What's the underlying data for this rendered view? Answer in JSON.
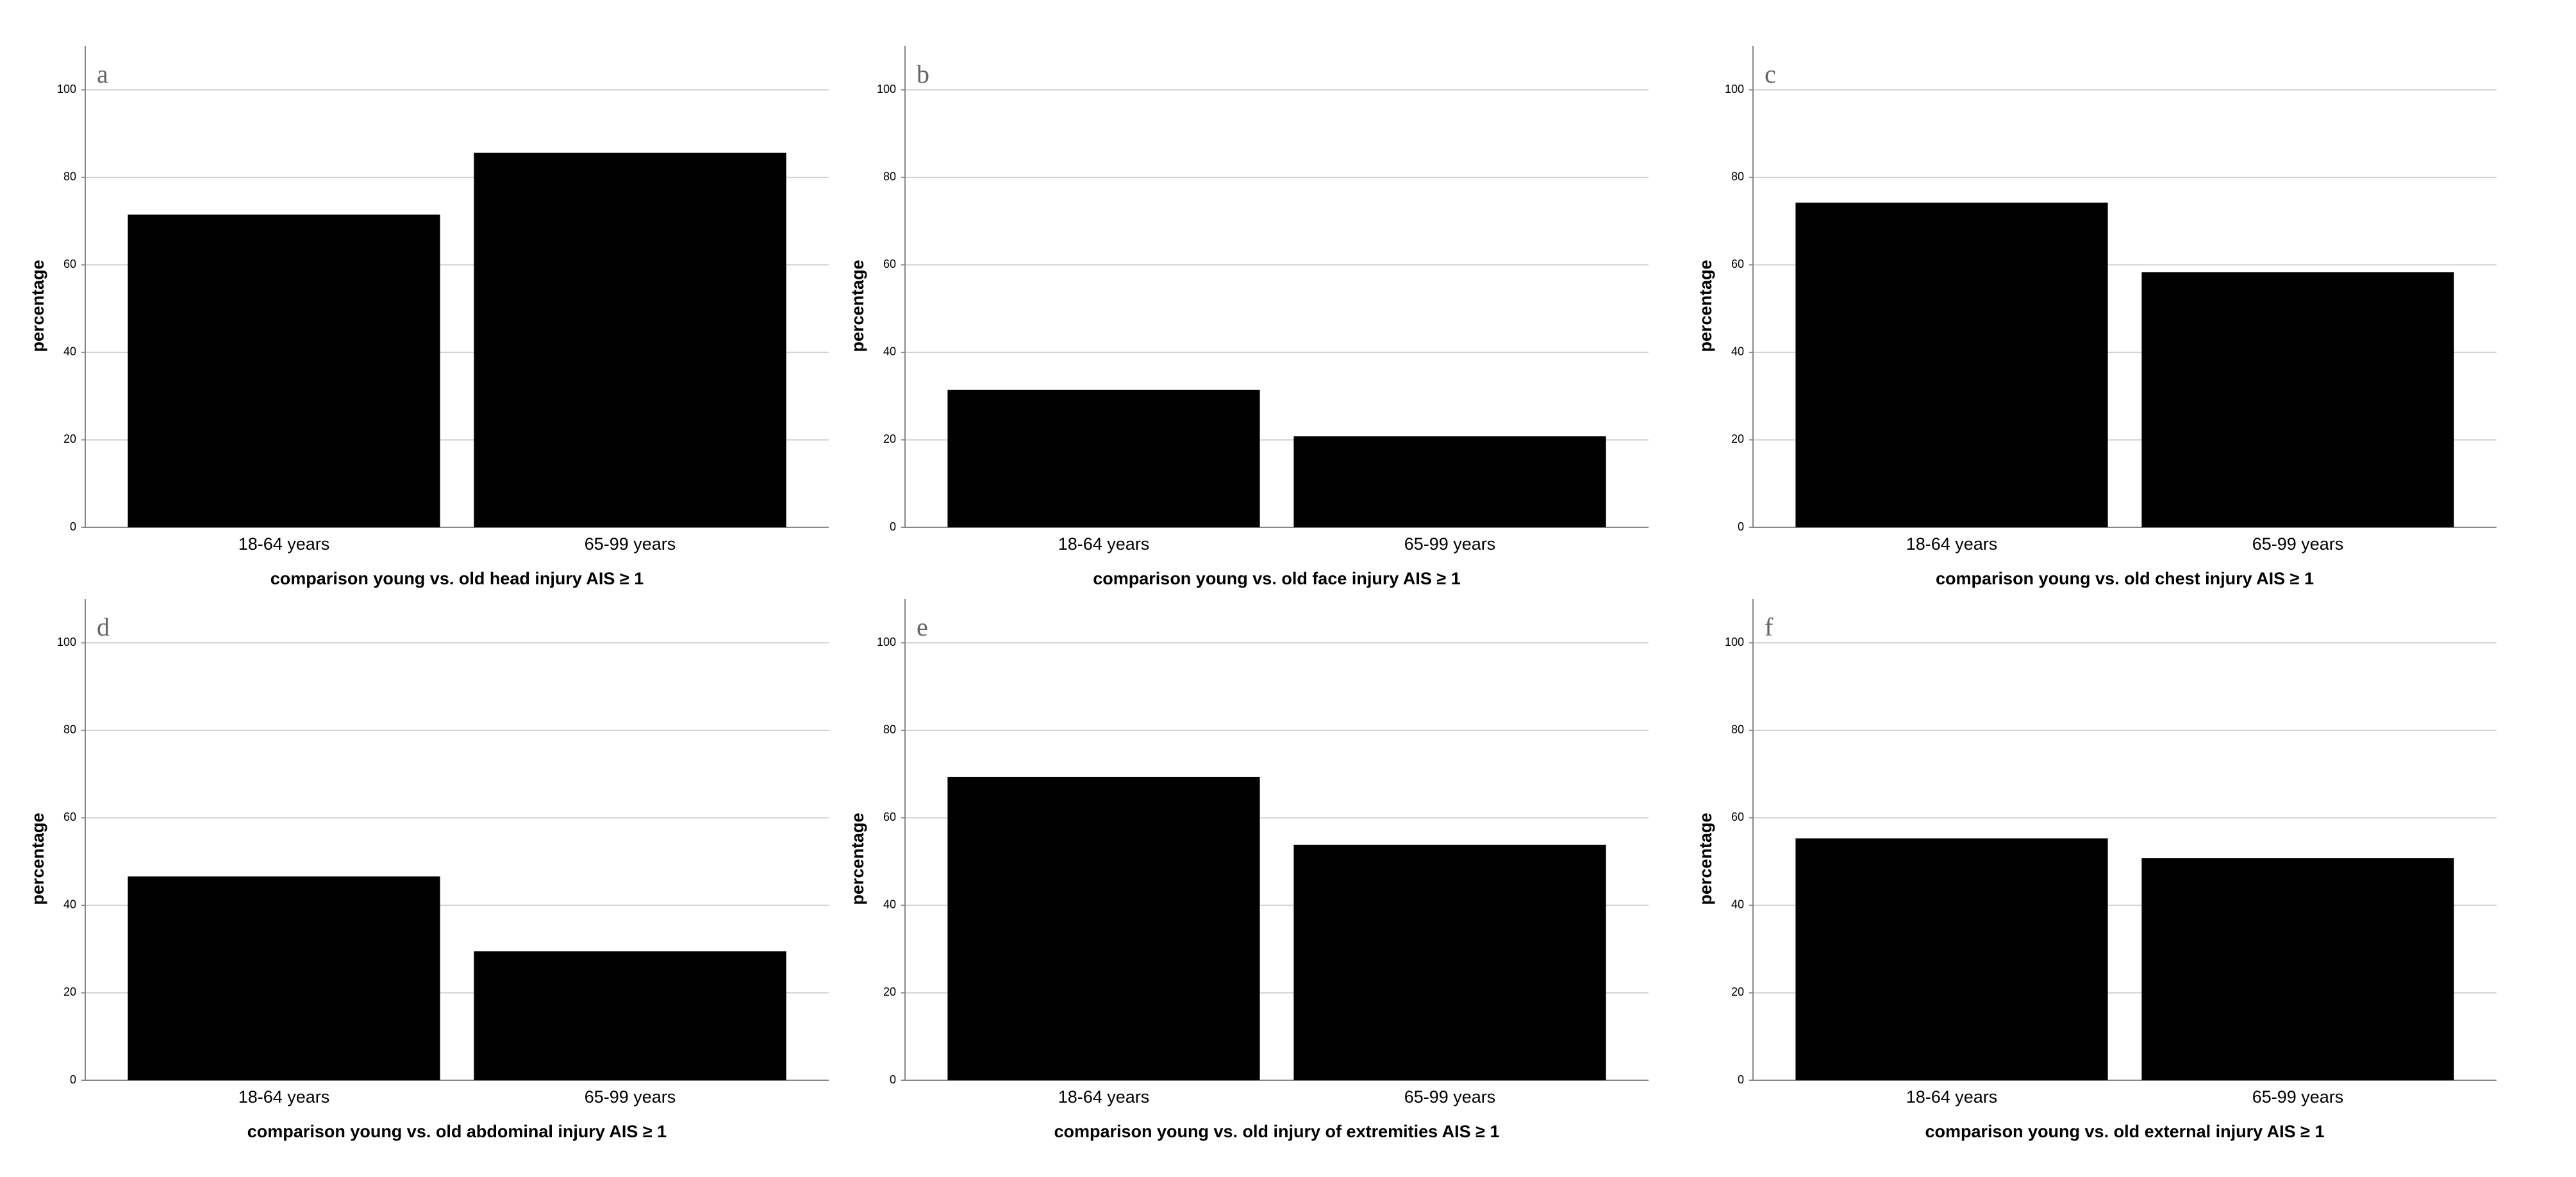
{
  "chart_data": [
    {
      "type": "bar",
      "panel_label": "a",
      "categories": [
        "18-64 years",
        "65-99 years"
      ],
      "values": [
        71.5,
        85.6
      ],
      "xlabel": "comparison young vs. old head injury AIS ≥ 1",
      "ylabel": "percentage",
      "ylim": [
        0,
        110
      ],
      "yticks": [
        0,
        20,
        40,
        60,
        80,
        100
      ],
      "color": "#000000",
      "grid": true
    },
    {
      "type": "bar",
      "panel_label": "b",
      "categories": [
        "18-64 years",
        "65-99 years"
      ],
      "values": [
        31.4,
        20.8
      ],
      "xlabel": "comparison young vs. old face injury AIS ≥ 1",
      "ylabel": "percentage",
      "ylim": [
        0,
        110
      ],
      "yticks": [
        0,
        20,
        40,
        60,
        80,
        100
      ],
      "color": "#000000",
      "grid": true
    },
    {
      "type": "bar",
      "panel_label": "c",
      "categories": [
        "18-64 years",
        "65-99 years"
      ],
      "values": [
        74.2,
        58.3
      ],
      "xlabel": "comparison young vs. old chest injury AIS ≥ 1",
      "ylabel": "percentage",
      "ylim": [
        0,
        110
      ],
      "yticks": [
        0,
        20,
        40,
        60,
        80,
        100
      ],
      "color": "#000000",
      "grid": true
    },
    {
      "type": "bar",
      "panel_label": "d",
      "categories": [
        "18-64 years",
        "65-99 years"
      ],
      "values": [
        46.6,
        29.5
      ],
      "xlabel": "comparison young vs. old abdominal injury AIS ≥ 1",
      "ylabel": "percentage",
      "ylim": [
        0,
        110
      ],
      "yticks": [
        0,
        20,
        40,
        60,
        80,
        100
      ],
      "color": "#000000",
      "grid": true
    },
    {
      "type": "bar",
      "panel_label": "e",
      "categories": [
        "18-64 years",
        "65-99 years"
      ],
      "values": [
        69.3,
        53.8
      ],
      "xlabel": "comparison young vs. old injury of extremities AIS ≥ 1",
      "ylabel": "percentage",
      "ylim": [
        0,
        110
      ],
      "yticks": [
        0,
        20,
        40,
        60,
        80,
        100
      ],
      "color": "#000000",
      "grid": true
    },
    {
      "type": "bar",
      "panel_label": "f",
      "categories": [
        "18-64 years",
        "65-99 years"
      ],
      "values": [
        55.3,
        50.8
      ],
      "xlabel": "comparison young vs. old external injury AIS ≥ 1",
      "ylabel": "percentage",
      "ylim": [
        0,
        110
      ],
      "yticks": [
        0,
        20,
        40,
        60,
        80,
        100
      ],
      "color": "#000000",
      "grid": true
    }
  ]
}
